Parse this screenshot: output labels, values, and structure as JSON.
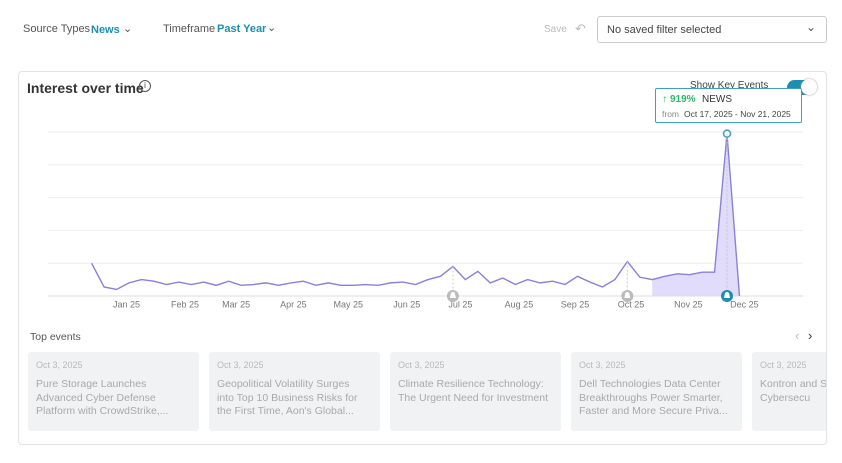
{
  "filters": {
    "source_label": "Source Types",
    "source_value": "News",
    "timeframe_label": "Timeframe",
    "timeframe_value": "Past Year",
    "save": "Save",
    "saved_filter": "No saved filter selected"
  },
  "card": {
    "title": "Interest over time",
    "toggle_label": "Show Key Events"
  },
  "chart_data": {
    "type": "line",
    "color": "#8b80d8",
    "values": [
      20,
      5.5,
      4,
      8,
      10,
      9,
      7,
      8.5,
      7,
      8.5,
      6.5,
      9,
      6.5,
      7,
      8,
      6.5,
      8,
      9,
      6.5,
      8,
      6.5,
      6.5,
      7,
      6.5,
      8,
      8.5,
      7,
      10,
      12,
      18,
      10,
      15,
      8,
      11,
      7,
      10,
      8,
      9,
      7,
      12,
      8.5,
      5.5,
      10,
      21,
      11.5,
      10,
      12,
      13.5,
      13,
      14.5,
      14.5,
      99,
      0
    ],
    "xlim": [
      -3.5,
      57.1
    ],
    "ylim": [
      0,
      100
    ],
    "xticks": [
      {
        "value": 2.8,
        "label": "Jan 25"
      },
      {
        "value": 7.5,
        "label": "Feb 25"
      },
      {
        "value": 11.6,
        "label": "Mar 25"
      },
      {
        "value": 16.2,
        "label": "Apr 25"
      },
      {
        "value": 20.6,
        "label": "May 25"
      },
      {
        "value": 25.3,
        "label": "Jun 25"
      },
      {
        "value": 29.6,
        "label": "Jul 25"
      },
      {
        "value": 34.3,
        "label": "Aug 25"
      },
      {
        "value": 38.8,
        "label": "Sep 25"
      },
      {
        "value": 43.3,
        "label": "Oct 25"
      },
      {
        "value": 47.9,
        "label": "Nov 25"
      },
      {
        "value": 52.4,
        "label": "Dec 25"
      }
    ],
    "grid": true
  },
  "tooltip": {
    "change": "919%",
    "source": "NEWS",
    "from": "from",
    "range": "Oct 17, 2025 - Nov 21, 2025"
  },
  "top_events": {
    "title": "Top events",
    "items": [
      {
        "date": "Oct 3, 2025",
        "title": "Pure Storage Launches Advanced Cyber Defense Platform with CrowdStrike,..."
      },
      {
        "date": "Oct 3, 2025",
        "title": "Geopolitical Volatility Surges into Top 10 Business Risks for the First Time, Aon's Global..."
      },
      {
        "date": "Oct 3, 2025",
        "title": "Climate Resilience Technology: The Urgent Need for Investment"
      },
      {
        "date": "Oct 3, 2025",
        "title": "Dell Technologies Data Center Breakthroughs Power Smarter, Faster and More Secure Priva..."
      },
      {
        "date": "Oct 3, 2025",
        "title": "Kontron and Strategic Pa Cybersecu"
      }
    ]
  }
}
